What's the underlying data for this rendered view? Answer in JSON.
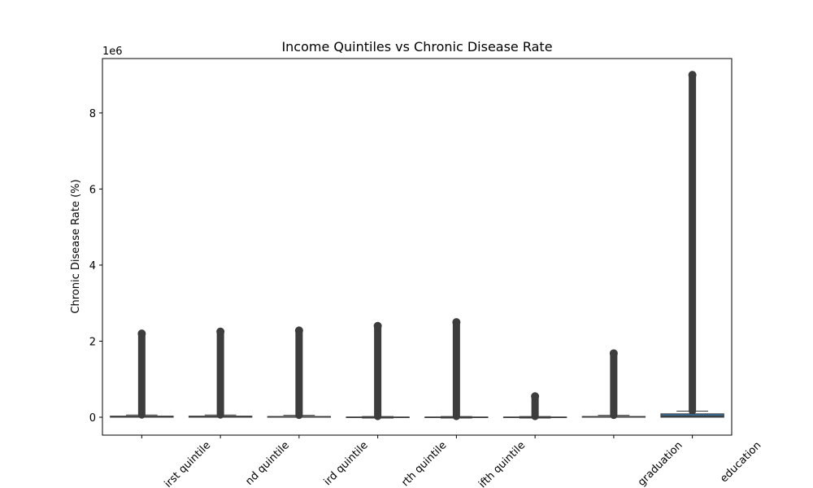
{
  "chart_data": {
    "type": "box",
    "title": "Income Quintiles vs Chronic Disease Rate",
    "y_label": "Chronic Disease Rate (%)",
    "y_offset_label": "1e6",
    "categories": [
      "irst quintile",
      "nd quintile",
      "ird quintile",
      "rth quintile",
      "ifth quintile",
      null,
      "graduation",
      "education"
    ],
    "color": "#3274a1",
    "whisker_low": [
      0,
      0,
      0,
      -0.02,
      -0.02,
      -0.02,
      0,
      0
    ],
    "q1": [
      0,
      0,
      0,
      -0.01,
      -0.01,
      -0.01,
      0,
      0
    ],
    "median": [
      0.01,
      0.01,
      0.01,
      0,
      0,
      0,
      0.01,
      0.03
    ],
    "q3": [
      0.03,
      0.03,
      0.02,
      0.005,
      0.005,
      0.005,
      0.02,
      0.09
    ],
    "whisker_high": [
      0.06,
      0.06,
      0.05,
      0.02,
      0.02,
      0.02,
      0.05,
      0.16
    ],
    "outlier_max": [
      2.2,
      2.25,
      2.28,
      2.4,
      2.5,
      0.55,
      1.68,
      9.0
    ],
    "ylim": [
      -0.47,
      9.43
    ],
    "yticks": [
      0,
      2,
      4,
      6,
      8
    ]
  }
}
